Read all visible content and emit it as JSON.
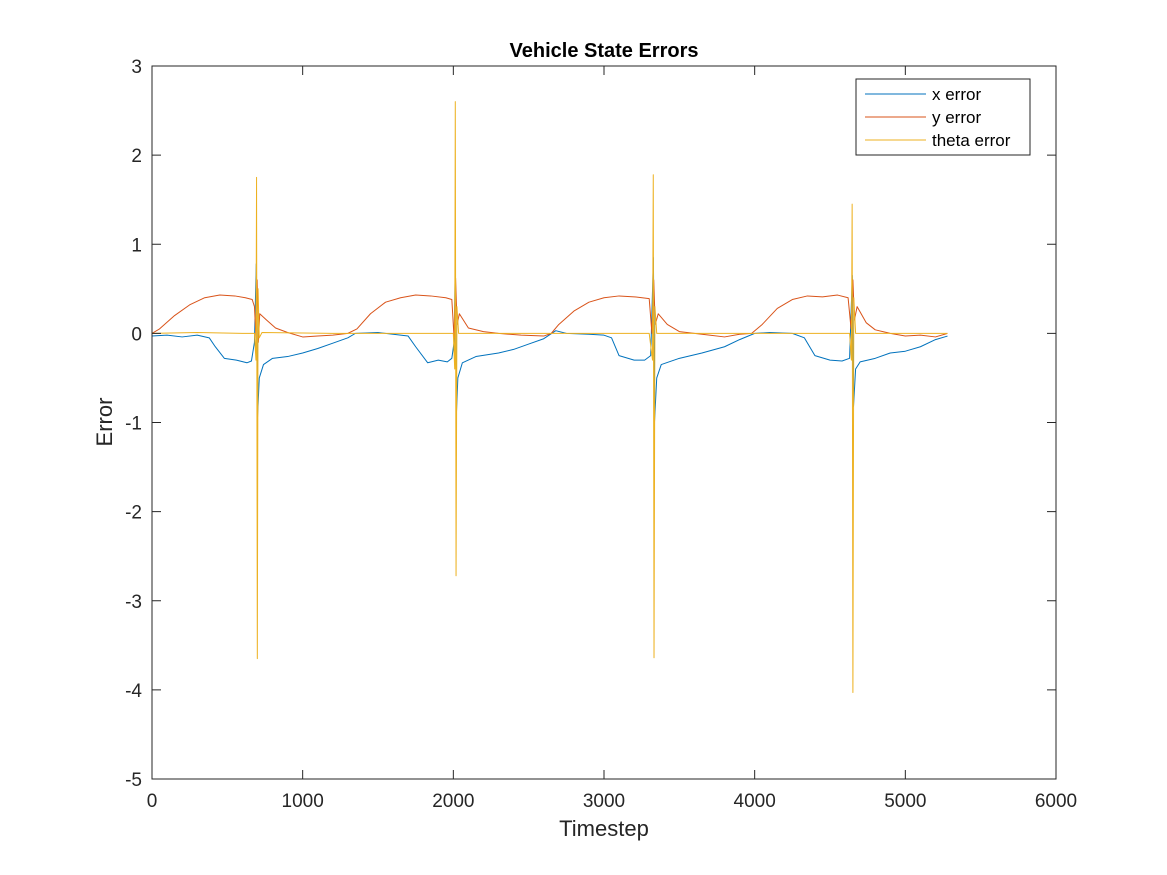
{
  "chart_data": {
    "type": "line",
    "title": "Vehicle State Errors",
    "xlabel": "Timestep",
    "ylabel": "Error",
    "xlim": [
      0,
      6000
    ],
    "ylim": [
      -5,
      3
    ],
    "xticks": [
      0,
      1000,
      2000,
      3000,
      4000,
      5000,
      6000
    ],
    "yticks": [
      -5,
      -4,
      -3,
      -2,
      -1,
      0,
      1,
      2,
      3
    ],
    "xtick_labels": [
      "0",
      "1000",
      "2000",
      "3000",
      "4000",
      "5000",
      "6000"
    ],
    "ytick_labels": [
      "-5",
      "-4",
      "-3",
      "-2",
      "-1",
      "0",
      "1",
      "2",
      "3"
    ],
    "grid": false,
    "legend_position": "top-right",
    "series": [
      {
        "name": "x error",
        "color": "#0072BD",
        "points": [
          [
            0,
            -0.03
          ],
          [
            100,
            -0.02
          ],
          [
            200,
            -0.04
          ],
          [
            300,
            -0.02
          ],
          [
            380,
            -0.05
          ],
          [
            420,
            -0.15
          ],
          [
            480,
            -0.28
          ],
          [
            560,
            -0.3
          ],
          [
            630,
            -0.33
          ],
          [
            660,
            -0.31
          ],
          [
            680,
            -0.1
          ],
          [
            692,
            0.78
          ],
          [
            700,
            -0.95
          ],
          [
            712,
            -0.5
          ],
          [
            740,
            -0.35
          ],
          [
            800,
            -0.28
          ],
          [
            900,
            -0.26
          ],
          [
            1000,
            -0.22
          ],
          [
            1100,
            -0.17
          ],
          [
            1200,
            -0.11
          ],
          [
            1300,
            -0.05
          ],
          [
            1350,
            0.0
          ],
          [
            1500,
            0.01
          ],
          [
            1600,
            -0.01
          ],
          [
            1700,
            -0.03
          ],
          [
            1750,
            -0.15
          ],
          [
            1830,
            -0.33
          ],
          [
            1900,
            -0.3
          ],
          [
            1960,
            -0.32
          ],
          [
            1990,
            -0.28
          ],
          [
            2005,
            -0.1
          ],
          [
            2013,
            0.78
          ],
          [
            2020,
            -0.92
          ],
          [
            2030,
            -0.5
          ],
          [
            2060,
            -0.33
          ],
          [
            2150,
            -0.26
          ],
          [
            2300,
            -0.22
          ],
          [
            2400,
            -0.18
          ],
          [
            2500,
            -0.12
          ],
          [
            2600,
            -0.06
          ],
          [
            2680,
            0.03
          ],
          [
            2750,
            0.0
          ],
          [
            2900,
            -0.01
          ],
          [
            3000,
            -0.02
          ],
          [
            3050,
            -0.05
          ],
          [
            3100,
            -0.25
          ],
          [
            3200,
            -0.3
          ],
          [
            3270,
            -0.3
          ],
          [
            3310,
            -0.25
          ],
          [
            3328,
            0.85
          ],
          [
            3335,
            -1.0
          ],
          [
            3350,
            -0.5
          ],
          [
            3380,
            -0.35
          ],
          [
            3500,
            -0.28
          ],
          [
            3650,
            -0.22
          ],
          [
            3800,
            -0.15
          ],
          [
            3900,
            -0.07
          ],
          [
            4000,
            0.0
          ],
          [
            4100,
            0.01
          ],
          [
            4250,
            0.0
          ],
          [
            4330,
            -0.05
          ],
          [
            4400,
            -0.25
          ],
          [
            4500,
            -0.3
          ],
          [
            4580,
            -0.31
          ],
          [
            4630,
            -0.28
          ],
          [
            4648,
            0.65
          ],
          [
            4656,
            -0.82
          ],
          [
            4670,
            -0.4
          ],
          [
            4700,
            -0.32
          ],
          [
            4800,
            -0.28
          ],
          [
            4900,
            -0.22
          ],
          [
            5000,
            -0.2
          ],
          [
            5100,
            -0.15
          ],
          [
            5200,
            -0.07
          ],
          [
            5280,
            -0.03
          ]
        ]
      },
      {
        "name": "y error",
        "color": "#D95319",
        "points": [
          [
            0,
            0.0
          ],
          [
            50,
            0.05
          ],
          [
            150,
            0.2
          ],
          [
            250,
            0.32
          ],
          [
            350,
            0.4
          ],
          [
            450,
            0.43
          ],
          [
            550,
            0.42
          ],
          [
            620,
            0.4
          ],
          [
            665,
            0.38
          ],
          [
            680,
            0.3
          ],
          [
            690,
            -0.05
          ],
          [
            698,
            0.6
          ],
          [
            706,
            -0.1
          ],
          [
            715,
            0.22
          ],
          [
            760,
            0.15
          ],
          [
            820,
            0.06
          ],
          [
            900,
            0.01
          ],
          [
            1000,
            -0.04
          ],
          [
            1100,
            -0.03
          ],
          [
            1200,
            -0.02
          ],
          [
            1300,
            0.0
          ],
          [
            1360,
            0.05
          ],
          [
            1450,
            0.22
          ],
          [
            1550,
            0.35
          ],
          [
            1650,
            0.4
          ],
          [
            1750,
            0.43
          ],
          [
            1850,
            0.42
          ],
          [
            1950,
            0.4
          ],
          [
            1990,
            0.38
          ],
          [
            2005,
            -0.05
          ],
          [
            2015,
            0.62
          ],
          [
            2025,
            0.1
          ],
          [
            2040,
            0.22
          ],
          [
            2100,
            0.06
          ],
          [
            2200,
            0.02
          ],
          [
            2300,
            0.0
          ],
          [
            2450,
            -0.02
          ],
          [
            2600,
            -0.03
          ],
          [
            2650,
            0.0
          ],
          [
            2700,
            0.1
          ],
          [
            2800,
            0.25
          ],
          [
            2900,
            0.35
          ],
          [
            3000,
            0.4
          ],
          [
            3100,
            0.42
          ],
          [
            3200,
            0.41
          ],
          [
            3300,
            0.39
          ],
          [
            3318,
            0.0
          ],
          [
            3330,
            0.6
          ],
          [
            3340,
            0.1
          ],
          [
            3360,
            0.22
          ],
          [
            3420,
            0.1
          ],
          [
            3500,
            0.02
          ],
          [
            3600,
            0.0
          ],
          [
            3700,
            -0.02
          ],
          [
            3800,
            -0.04
          ],
          [
            3900,
            -0.01
          ],
          [
            3980,
            0.0
          ],
          [
            4050,
            0.1
          ],
          [
            4150,
            0.28
          ],
          [
            4250,
            0.38
          ],
          [
            4350,
            0.42
          ],
          [
            4450,
            0.41
          ],
          [
            4550,
            0.43
          ],
          [
            4620,
            0.4
          ],
          [
            4640,
            0.05
          ],
          [
            4652,
            0.6
          ],
          [
            4662,
            0.15
          ],
          [
            4680,
            0.3
          ],
          [
            4740,
            0.12
          ],
          [
            4800,
            0.04
          ],
          [
            4900,
            0.0
          ],
          [
            5000,
            -0.03
          ],
          [
            5100,
            -0.02
          ],
          [
            5200,
            -0.04
          ],
          [
            5280,
            0.0
          ]
        ]
      },
      {
        "name": "theta error",
        "color": "#EDB120",
        "points": [
          [
            0,
            0.0
          ],
          [
            300,
            0.01
          ],
          [
            600,
            0.0
          ],
          [
            680,
            0.0
          ],
          [
            690,
            -0.3
          ],
          [
            694,
            1.75
          ],
          [
            699,
            -3.65
          ],
          [
            704,
            0.5
          ],
          [
            712,
            -0.05
          ],
          [
            730,
            0.01
          ],
          [
            1200,
            0.0
          ],
          [
            1900,
            0.0
          ],
          [
            2000,
            0.0
          ],
          [
            2009,
            -0.4
          ],
          [
            2013,
            2.6
          ],
          [
            2018,
            -2.72
          ],
          [
            2024,
            0.3
          ],
          [
            2035,
            0.0
          ],
          [
            2800,
            0.0
          ],
          [
            3300,
            0.0
          ],
          [
            3322,
            -0.3
          ],
          [
            3327,
            1.78
          ],
          [
            3332,
            -3.64
          ],
          [
            3338,
            0.3
          ],
          [
            3350,
            0.0
          ],
          [
            4000,
            0.0
          ],
          [
            4630,
            0.0
          ],
          [
            4642,
            -0.3
          ],
          [
            4647,
            1.45
          ],
          [
            4652,
            -4.03
          ],
          [
            4658,
            0.4
          ],
          [
            4670,
            0.0
          ],
          [
            5280,
            0.0
          ]
        ]
      }
    ]
  }
}
